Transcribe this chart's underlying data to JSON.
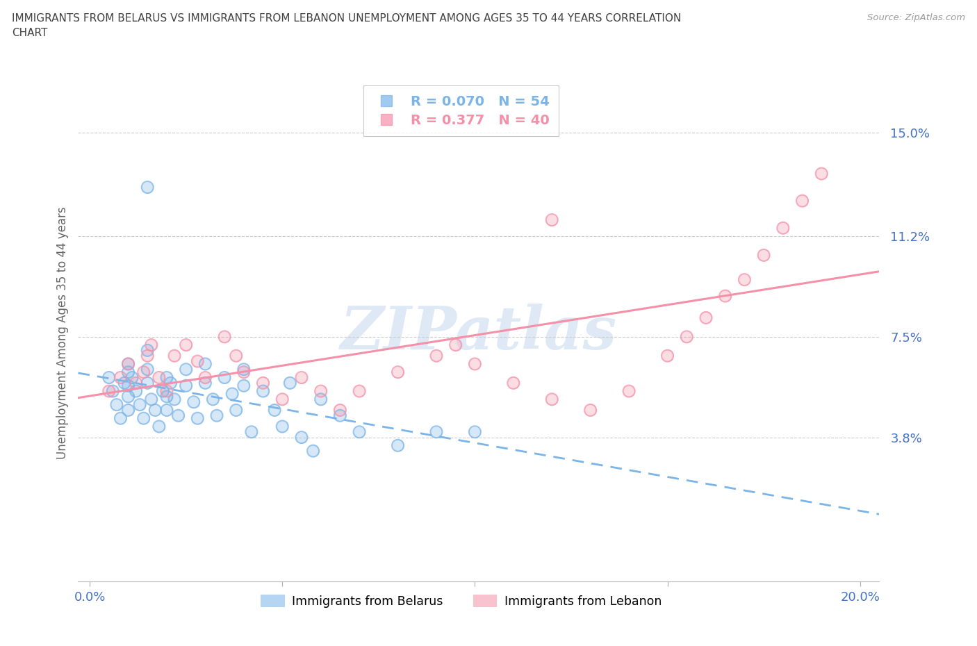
{
  "title_line1": "IMMIGRANTS FROM BELARUS VS IMMIGRANTS FROM LEBANON UNEMPLOYMENT AMONG AGES 35 TO 44 YEARS CORRELATION",
  "title_line2": "CHART",
  "source": "Source: ZipAtlas.com",
  "ylabel": "Unemployment Among Ages 35 to 44 years",
  "xlim": [
    -0.003,
    0.205
  ],
  "ylim": [
    -0.015,
    0.168
  ],
  "xticks": [
    0.0,
    0.05,
    0.1,
    0.15,
    0.2
  ],
  "xticklabels": [
    "0.0%",
    "",
    "",
    "",
    "20.0%"
  ],
  "ytick_positions": [
    0.038,
    0.075,
    0.112,
    0.15
  ],
  "ytick_labels": [
    "3.8%",
    "7.5%",
    "11.2%",
    "15.0%"
  ],
  "grid_color": "#cccccc",
  "background_color": "#ffffff",
  "belarus_color": "#7ab4e8",
  "lebanon_color": "#f490a8",
  "belarus_R": 0.07,
  "belarus_N": 54,
  "lebanon_R": 0.377,
  "lebanon_N": 40,
  "axis_color": "#4472c4",
  "title_color": "#404040",
  "source_color": "#999999",
  "ylabel_color": "#666666",
  "belarus_x": [
    0.005,
    0.006,
    0.007,
    0.008,
    0.009,
    0.01,
    0.01,
    0.01,
    0.01,
    0.01,
    0.011,
    0.012,
    0.013,
    0.014,
    0.015,
    0.015,
    0.015,
    0.016,
    0.017,
    0.018,
    0.019,
    0.02,
    0.02,
    0.02,
    0.021,
    0.022,
    0.023,
    0.025,
    0.025,
    0.027,
    0.028,
    0.03,
    0.03,
    0.032,
    0.033,
    0.035,
    0.037,
    0.038,
    0.04,
    0.04,
    0.042,
    0.045,
    0.048,
    0.05,
    0.052,
    0.055,
    0.058,
    0.06,
    0.065,
    0.07,
    0.08,
    0.09,
    0.1,
    0.015
  ],
  "belarus_y": [
    0.06,
    0.055,
    0.05,
    0.045,
    0.058,
    0.062,
    0.057,
    0.053,
    0.048,
    0.065,
    0.06,
    0.055,
    0.05,
    0.045,
    0.07,
    0.063,
    0.058,
    0.052,
    0.048,
    0.042,
    0.055,
    0.06,
    0.053,
    0.048,
    0.058,
    0.052,
    0.046,
    0.063,
    0.057,
    0.051,
    0.045,
    0.065,
    0.058,
    0.052,
    0.046,
    0.06,
    0.054,
    0.048,
    0.063,
    0.057,
    0.04,
    0.055,
    0.048,
    0.042,
    0.058,
    0.038,
    0.033,
    0.052,
    0.046,
    0.04,
    0.035,
    0.04,
    0.04,
    0.13
  ],
  "lebanon_x": [
    0.005,
    0.008,
    0.01,
    0.012,
    0.014,
    0.015,
    0.016,
    0.018,
    0.02,
    0.022,
    0.025,
    0.028,
    0.03,
    0.035,
    0.038,
    0.04,
    0.045,
    0.05,
    0.055,
    0.06,
    0.065,
    0.07,
    0.08,
    0.09,
    0.095,
    0.1,
    0.11,
    0.12,
    0.13,
    0.14,
    0.15,
    0.155,
    0.16,
    0.165,
    0.17,
    0.175,
    0.18,
    0.185,
    0.19,
    0.12
  ],
  "lebanon_y": [
    0.055,
    0.06,
    0.065,
    0.058,
    0.062,
    0.068,
    0.072,
    0.06,
    0.055,
    0.068,
    0.072,
    0.066,
    0.06,
    0.075,
    0.068,
    0.062,
    0.058,
    0.052,
    0.06,
    0.055,
    0.048,
    0.055,
    0.062,
    0.068,
    0.072,
    0.065,
    0.058,
    0.052,
    0.048,
    0.055,
    0.068,
    0.075,
    0.082,
    0.09,
    0.096,
    0.105,
    0.115,
    0.125,
    0.135,
    0.118
  ]
}
